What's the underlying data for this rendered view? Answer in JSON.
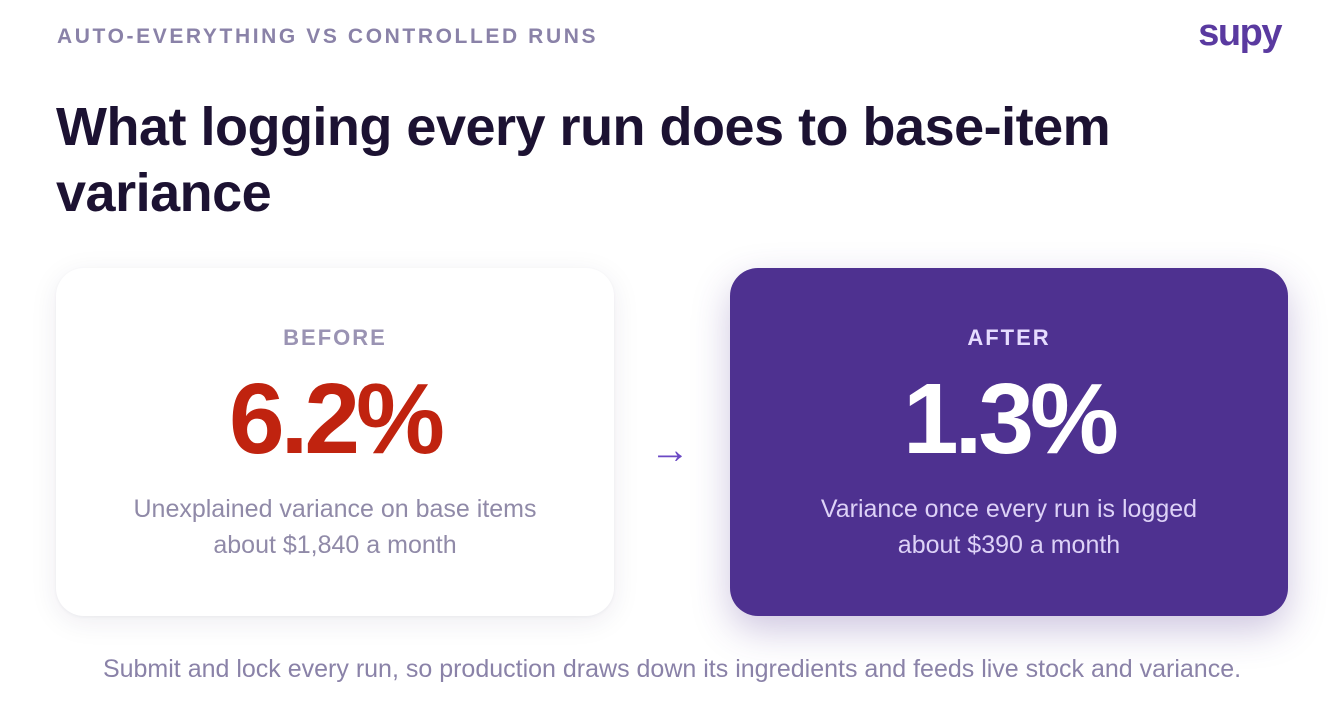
{
  "eyebrow": "AUTO-EVERYTHING VS CONTROLLED RUNS",
  "logo": "supy",
  "title": "What logging every run does to base-item variance",
  "before": {
    "label": "BEFORE",
    "value": "6.2%",
    "desc_line1": "Unexplained variance on base items",
    "desc_line2": "about $1,840 a month",
    "color": "#c0230f"
  },
  "arrow": "→",
  "after": {
    "label": "AFTER",
    "value": "1.3%",
    "desc_line1": "Variance once every run is logged",
    "desc_line2": "about $390 a month",
    "color": "#4e3190"
  },
  "footer": "Submit and lock every run, so production draws down its ingredients and feeds live stock and variance."
}
